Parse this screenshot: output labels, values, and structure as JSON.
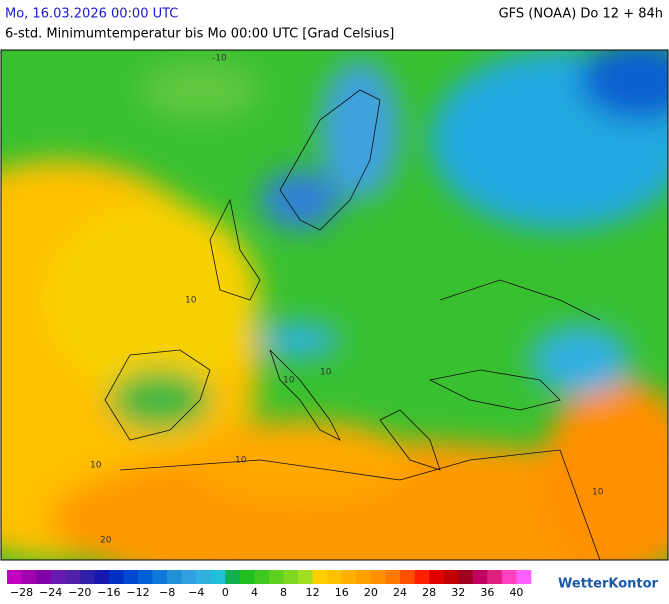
{
  "header": {
    "date": "Mo, 16.03.2026 00:00 UTC",
    "model": "GFS (NOAA) Do 12 + 84h",
    "title": "6-std. Minimumtemperatur bis Mo 00:00 UTC [Grad Celsius]"
  },
  "map": {
    "contour_labels": [
      "-10",
      "10",
      "10",
      "10",
      "10",
      "10",
      "20",
      "10"
    ]
  },
  "legend": {
    "labels": [
      "−28",
      "−24",
      "−20",
      "−16",
      "−12",
      "−8",
      "−4",
      "0",
      "4",
      "8",
      "12",
      "16",
      "20",
      "24",
      "28",
      "32",
      "36",
      "40"
    ],
    "colors": [
      "#c000c0",
      "#a000b0",
      "#8000a8",
      "#6a1ab0",
      "#5020a8",
      "#3020a8",
      "#1818b0",
      "#0030c0",
      "#0048d0",
      "#0060d8",
      "#1078d8",
      "#2090d8",
      "#30a0e0",
      "#30b0e0",
      "#20c0d8",
      "#10b050",
      "#20c020",
      "#40c820",
      "#60d020",
      "#80d820",
      "#a0e020",
      "#ffd000",
      "#ffc000",
      "#ffb000",
      "#ffa000",
      "#ff9000",
      "#ff7800",
      "#ff5000",
      "#ff2000",
      "#e00000",
      "#c00000",
      "#a00020",
      "#c00060",
      "#e02080",
      "#ff40c0",
      "#ff60ff"
    ]
  },
  "logo": "WetterKontor"
}
